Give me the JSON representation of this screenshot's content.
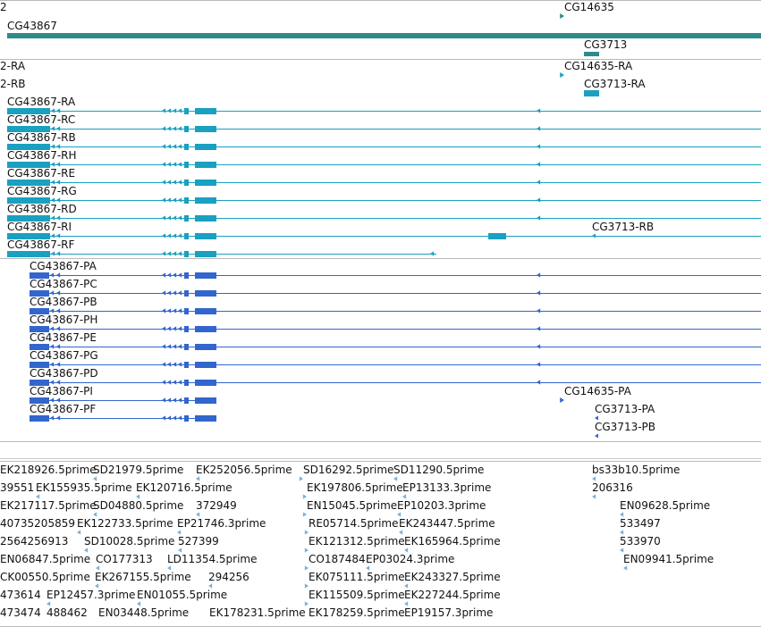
{
  "colors": {
    "gene": "#2e8b8b",
    "transcript": "#1aa0c0",
    "protein": "#3366cc",
    "est": "#7ab0d6",
    "separator": "#b9b9b9"
  },
  "gene_track": {
    "labels": [
      "2",
      "CG43867",
      "CG14635",
      "CG3713"
    ]
  },
  "transcript_track": {
    "labels": [
      "2-RA",
      "2-RB",
      "CG43867-RA",
      "CG43867-RC",
      "CG43867-RB",
      "CG43867-RH",
      "CG43867-RE",
      "CG43867-RG",
      "CG43867-RD",
      "CG43867-RI",
      "CG43867-RF",
      "CG14635-RA",
      "CG3713-RA",
      "CG3713-RB"
    ]
  },
  "protein_track": {
    "labels": [
      "CG43867-PA",
      "CG43867-PC",
      "CG43867-PB",
      "CG43867-PH",
      "CG43867-PE",
      "CG43867-PG",
      "CG43867-PD",
      "CG43867-PI",
      "CG43867-PF",
      "CG14635-PA",
      "CG3713-PA",
      "CG3713-PB"
    ]
  },
  "est_track": {
    "labels": [
      "EK218926.5prime",
      "SD21979.5prime",
      "EK252056.5prime",
      "SD16292.5prime",
      "SD11290.5prime",
      "bs33b10.5prime",
      "39551",
      "EK155935.5prime",
      "EK120716.5prime",
      "EK197806.5prime",
      "EP13133.3prime",
      "206316",
      "EK217117.5prime",
      "SD04880.5prime",
      "372949",
      "EN15045.5prime",
      "EP10203.3prime",
      "EN09628.5prime",
      "40735205859",
      "EK122733.5prime",
      "EP21746.3prime",
      "RE05714.5prime",
      "EK243447.5prime",
      "533497",
      "2564256913",
      "SD10028.5prime",
      "527399",
      "EK121312.5prime",
      "EK165964.5prime",
      "533970",
      "EN06847.5prime",
      "CO177313",
      "LD11354.5prime",
      "CO187484",
      "EP03024.3prime",
      "EN09941.5prime",
      "CK00550.5prime",
      "EK267155.5prime",
      "294256",
      "EK075111.5prime",
      "EK243327.5prime",
      "473614",
      "EP12457.3prime",
      "EN01055.5prime",
      "EK115509.5prime",
      "EK227244.5prime",
      "473474",
      "488462",
      "EN03448.5prime",
      "EK178231.5prime",
      "EK178259.5prime",
      "EP19157.3prime"
    ]
  }
}
